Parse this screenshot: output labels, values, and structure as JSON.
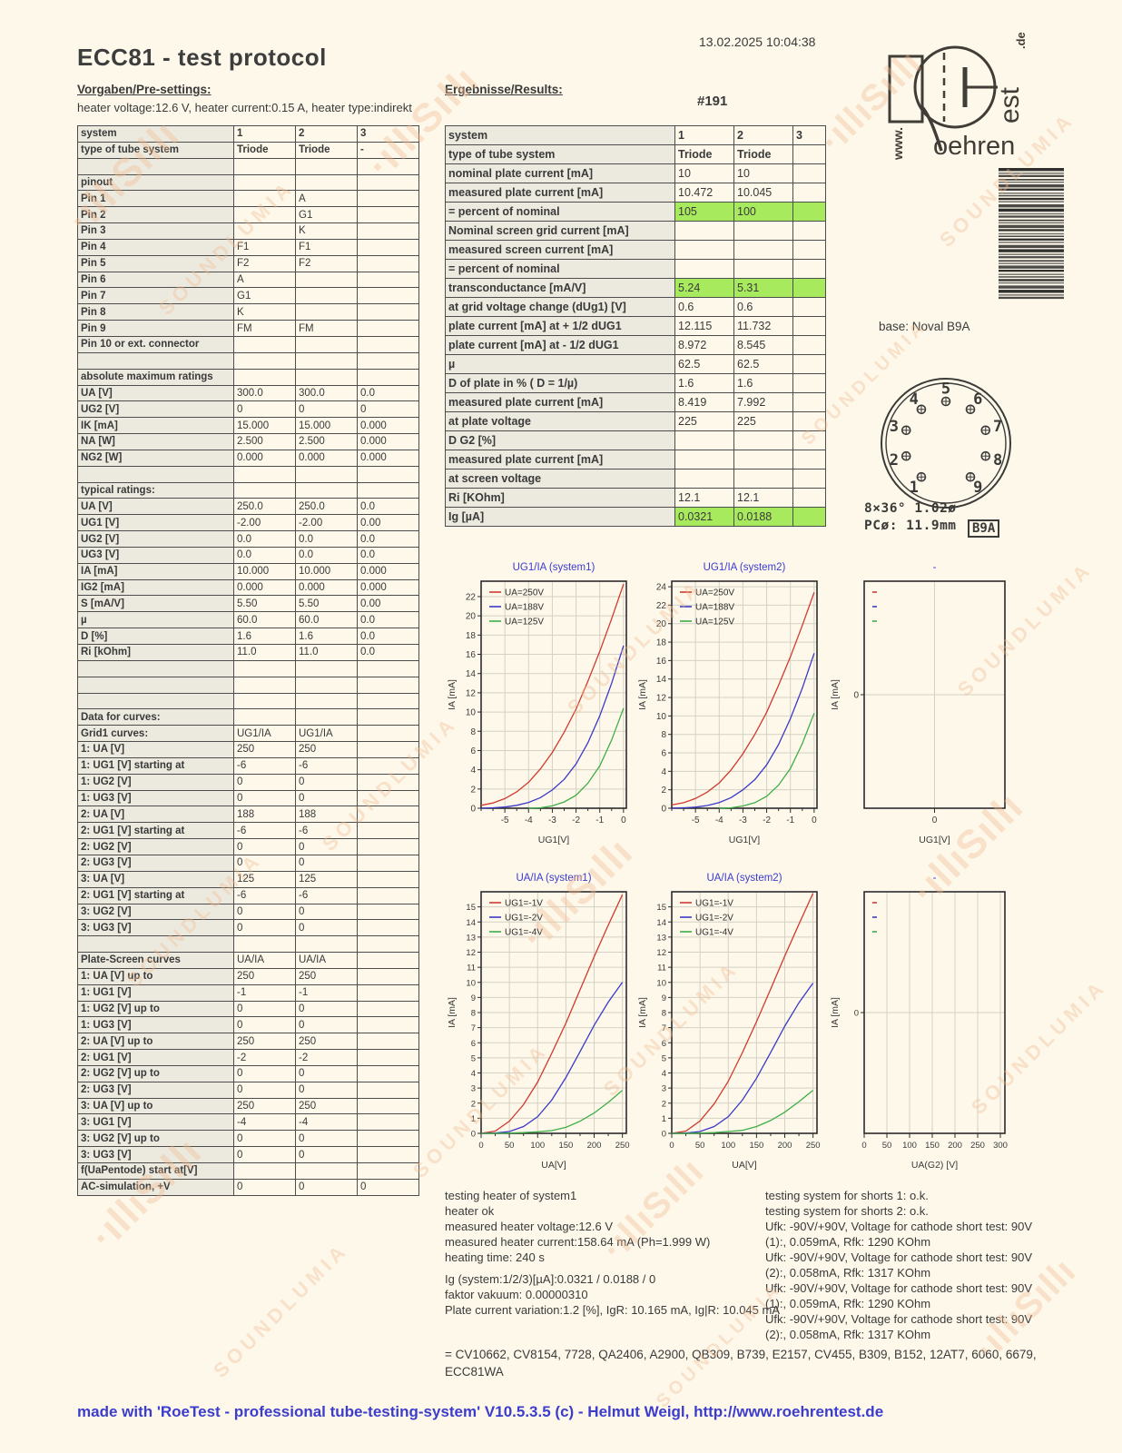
{
  "meta": {
    "timestamp": "13.02.2025  10:04:38",
    "title": "ECC81  -  test protocol",
    "serial": "#191"
  },
  "presettings": {
    "heading": "Vorgaben/Pre-settings:",
    "line": "heater voltage:12.6 V, heater current:0.15 A, heater type:indirekt"
  },
  "results": {
    "heading": "Ergebnisse/Results:"
  },
  "left_table": {
    "rows": [
      {
        "label": "system",
        "v1": "1",
        "v2": "2",
        "v3": "3",
        "bold": true
      },
      {
        "label": "type of tube system",
        "v1": "Triode",
        "v2": "Triode",
        "v3": "-",
        "bold": true
      },
      {},
      {
        "label": "pinout"
      },
      {
        "label": "Pin 1",
        "v2": "A"
      },
      {
        "label": "Pin 2",
        "v2": "G1"
      },
      {
        "label": "Pin 3",
        "v2": "K"
      },
      {
        "label": "Pin 4",
        "v1": "F1",
        "v2": "F1"
      },
      {
        "label": "Pin 5",
        "v1": "F2",
        "v2": "F2"
      },
      {
        "label": "Pin 6",
        "v1": "A"
      },
      {
        "label": "Pin 7",
        "v1": "G1"
      },
      {
        "label": "Pin 8",
        "v1": "K"
      },
      {
        "label": "Pin 9",
        "v1": "FM",
        "v2": "FM"
      },
      {
        "label": "Pin 10 or ext. connector"
      },
      {},
      {
        "label": "absolute maximum ratings"
      },
      {
        "label": "UA [V]",
        "v1": "300.0",
        "v2": "300.0",
        "v3": "0.0"
      },
      {
        "label": "UG2 [V]",
        "v1": "0",
        "v2": "0",
        "v3": "0"
      },
      {
        "label": "IK [mA]",
        "v1": "15.000",
        "v2": "15.000",
        "v3": "0.000"
      },
      {
        "label": "NA [W]",
        "v1": "2.500",
        "v2": "2.500",
        "v3": "0.000"
      },
      {
        "label": "NG2 [W]",
        "v1": "0.000",
        "v2": "0.000",
        "v3": "0.000"
      },
      {},
      {
        "label": "typical ratings:"
      },
      {
        "label": "UA [V]",
        "v1": "250.0",
        "v2": "250.0",
        "v3": "0.0"
      },
      {
        "label": "UG1 [V]",
        "v1": "-2.00",
        "v2": "-2.00",
        "v3": "0.00"
      },
      {
        "label": "UG2 [V]",
        "v1": "0.0",
        "v2": "0.0",
        "v3": "0.0"
      },
      {
        "label": "UG3 [V]",
        "v1": "0.0",
        "v2": "0.0",
        "v3": "0.0"
      },
      {
        "label": "IA [mA]",
        "v1": "10.000",
        "v2": "10.000",
        "v3": "0.000"
      },
      {
        "label": "IG2 [mA]",
        "v1": "0.000",
        "v2": "0.000",
        "v3": "0.000"
      },
      {
        "label": "S [mA/V]",
        "v1": "5.50",
        "v2": "5.50",
        "v3": "0.00"
      },
      {
        "label": "µ",
        "v1": "60.0",
        "v2": "60.0",
        "v3": "0.0"
      },
      {
        "label": "D [%]",
        "v1": "1.6",
        "v2": "1.6",
        "v3": "0.0"
      },
      {
        "label": "Ri [kOhm]",
        "v1": "11.0",
        "v2": "11.0",
        "v3": "0.0"
      },
      {},
      {},
      {},
      {
        "label": "Data for curves:"
      },
      {
        "label": "Grid1 curves:",
        "v1": "UG1/IA",
        "v2": "UG1/IA"
      },
      {
        "label": "1: UA [V]",
        "v1": "250",
        "v2": "250"
      },
      {
        "label": "1: UG1 [V] starting at",
        "v1": "-6",
        "v2": "-6"
      },
      {
        "label": "1: UG2 [V]",
        "v1": "0",
        "v2": "0"
      },
      {
        "label": "1: UG3 [V]",
        "v1": "0",
        "v2": "0"
      },
      {
        "label": "2: UA [V]",
        "v1": "188",
        "v2": "188"
      },
      {
        "label": "2: UG1 [V] starting at",
        "v1": "-6",
        "v2": "-6"
      },
      {
        "label": "2: UG2 [V]",
        "v1": "0",
        "v2": "0"
      },
      {
        "label": "2: UG3 [V]",
        "v1": "0",
        "v2": "0"
      },
      {
        "label": "3: UA [V]",
        "v1": "125",
        "v2": "125"
      },
      {
        "label": "2: UG1 [V] starting at",
        "v1": "-6",
        "v2": "-6"
      },
      {
        "label": "3: UG2 [V]",
        "v1": "0",
        "v2": "0"
      },
      {
        "label": "3: UG3 [V]",
        "v1": "0",
        "v2": "0"
      },
      {},
      {
        "label": "Plate-Screen curves",
        "v1": "UA/IA",
        "v2": "UA/IA"
      },
      {
        "label": "1: UA [V] up to",
        "v1": "250",
        "v2": "250"
      },
      {
        "label": "1: UG1 [V]",
        "v1": "-1",
        "v2": "-1"
      },
      {
        "label": "1: UG2 [V] up to",
        "v1": "0",
        "v2": "0"
      },
      {
        "label": "1: UG3 [V]",
        "v1": "0",
        "v2": "0"
      },
      {
        "label": "2: UA [V] up to",
        "v1": "250",
        "v2": "250"
      },
      {
        "label": "2: UG1 [V]",
        "v1": "-2",
        "v2": "-2"
      },
      {
        "label": "2: UG2 [V] up to",
        "v1": "0",
        "v2": "0"
      },
      {
        "label": "2: UG3 [V]",
        "v1": "0",
        "v2": "0"
      },
      {
        "label": "3: UA [V] up to",
        "v1": "250",
        "v2": "250"
      },
      {
        "label": "3: UG1 [V]",
        "v1": "-4",
        "v2": "-4"
      },
      {
        "label": "3: UG2 [V] up to",
        "v1": "0",
        "v2": "0"
      },
      {
        "label": "3: UG3 [V]",
        "v1": "0",
        "v2": "0"
      },
      {
        "label": "f(UaPentode) start at[V]"
      },
      {
        "label": "AC-simulation, +V",
        "v1": "0",
        "v2": "0",
        "v3": "0"
      }
    ]
  },
  "results_table": {
    "rows": [
      {
        "label": "system",
        "v1": "1",
        "v2": "2",
        "v3": "3",
        "bold": true
      },
      {
        "label": "type of tube system",
        "v1": "Triode",
        "v2": "Triode",
        "bold": true
      },
      {
        "label": "nominal plate current [mA]",
        "v1": "10",
        "v2": "10"
      },
      {
        "label": "measured plate current [mA]",
        "v1": "10.472",
        "v2": "10.045"
      },
      {
        "label": "= percent of nominal",
        "v1": "105",
        "v2": "100",
        "hl": true
      },
      {
        "label": "Nominal screen grid current [mA]"
      },
      {
        "label": "measured screen current [mA]"
      },
      {
        "label": "= percent of nominal"
      },
      {
        "label": "transconductance [mA/V]",
        "v1": "5.24",
        "v2": "5.31",
        "hl": true
      },
      {
        "label": "at grid voltage change (dUg1) [V]",
        "v1": "0.6",
        "v2": "0.6"
      },
      {
        "label": "plate current [mA] at + 1/2 dUG1",
        "v1": "12.115",
        "v2": "11.732"
      },
      {
        "label": "plate current [mA] at - 1/2 dUG1",
        "v1": "8.972",
        "v2": "8.545"
      },
      {
        "label": "µ",
        "v1": "62.5",
        "v2": "62.5"
      },
      {
        "label": "D of plate in % ( D = 1/µ)",
        "v1": "1.6",
        "v2": "1.6"
      },
      {
        "label": "measured plate current [mA]",
        "v1": "8.419",
        "v2": "7.992"
      },
      {
        "label": "at plate voltage",
        "v1": "225",
        "v2": "225"
      },
      {
        "label": "D G2 [%]"
      },
      {
        "label": "measured plate current [mA]"
      },
      {
        "label": "at screen voltage"
      },
      {
        "label": "Ri [KOhm]",
        "v1": "12.1",
        "v2": "12.1"
      },
      {
        "label": "Ig [µA]",
        "v1": "0.0321",
        "v2": "0.0188",
        "hl": true
      }
    ]
  },
  "base": {
    "label": "base: Noval B9A",
    "pins": [
      "1",
      "2",
      "3",
      "4",
      "5",
      "6",
      "7",
      "8",
      "9"
    ],
    "dim1": "8×36° 1.02ø",
    "dim2": "PCø: 11.9mm",
    "code": "B9A"
  },
  "logo": {
    "www": "www.",
    "oehren": "oehren",
    "est": "est",
    "de": ".de"
  },
  "chart_data": [
    {
      "type": "line",
      "title": "UG1/IA (system1)",
      "xlabel": "UG1[V]",
      "ylabel": "IA [mA]",
      "xlim": [
        -6,
        0.12
      ],
      "ylim": [
        0,
        23.6
      ],
      "xticks": [
        -5,
        -4,
        -3,
        -2,
        -1,
        0
      ],
      "xminor": 0.5,
      "yticks": [
        0,
        2,
        4,
        6,
        8,
        10,
        12,
        14,
        16,
        18,
        20,
        22
      ],
      "series": [
        {
          "name": "UA=250V",
          "color": "#d03a2e",
          "x": [
            -6,
            -5.5,
            -5,
            -4.5,
            -4,
            -3.5,
            -3,
            -2.5,
            -2,
            -1.5,
            -1,
            -0.5,
            0
          ],
          "y": [
            0.3,
            0.55,
            1.0,
            1.7,
            2.7,
            4.1,
            5.8,
            7.9,
            10.3,
            13.2,
            16.3,
            19.7,
            23.3
          ]
        },
        {
          "name": "UA=188V",
          "color": "#3a3ac8",
          "x": [
            -6,
            -5.5,
            -5,
            -4.5,
            -4,
            -3.5,
            -3,
            -2.5,
            -2,
            -1.5,
            -1,
            -0.5,
            0
          ],
          "y": [
            0,
            0.05,
            0.12,
            0.3,
            0.6,
            1.1,
            1.9,
            3.0,
            4.6,
            6.8,
            9.6,
            13.0,
            16.9
          ]
        },
        {
          "name": "UA=125V",
          "color": "#3fae47",
          "x": [
            -4,
            -3.5,
            -3,
            -2.5,
            -2,
            -1.5,
            -1,
            -0.5,
            0
          ],
          "y": [
            0,
            0.05,
            0.25,
            0.65,
            1.35,
            2.6,
            4.4,
            7.1,
            10.4
          ]
        }
      ]
    },
    {
      "type": "line",
      "title": "UG1/IA (system2)",
      "xlabel": "UG1[V]",
      "ylabel": "IA [mA]",
      "xlim": [
        -6,
        0.12
      ],
      "ylim": [
        0,
        24.6
      ],
      "xticks": [
        -5,
        -4,
        -3,
        -2,
        -1,
        0
      ],
      "xminor": 0.5,
      "yticks": [
        0,
        2,
        4,
        6,
        8,
        10,
        12,
        14,
        16,
        18,
        20,
        22,
        24
      ],
      "series": [
        {
          "name": "UA=250V",
          "color": "#d03a2e",
          "x": [
            -6,
            -5.5,
            -5,
            -4.5,
            -4,
            -3.5,
            -3,
            -2.5,
            -2,
            -1.5,
            -1,
            -0.5,
            0
          ],
          "y": [
            0.35,
            0.6,
            1.05,
            1.75,
            2.75,
            4.15,
            5.9,
            8.0,
            10.4,
            13.3,
            16.4,
            19.8,
            23.4
          ]
        },
        {
          "name": "UA=188V",
          "color": "#3a3ac8",
          "x": [
            -6,
            -5.5,
            -5,
            -4.5,
            -4,
            -3.5,
            -3,
            -2.5,
            -2,
            -1.5,
            -1,
            -0.5,
            0
          ],
          "y": [
            0,
            0.05,
            0.12,
            0.3,
            0.62,
            1.15,
            2.0,
            3.1,
            4.7,
            6.9,
            9.7,
            13.0,
            16.8
          ]
        },
        {
          "name": "UA=125V",
          "color": "#3fae47",
          "x": [
            -4,
            -3.5,
            -3,
            -2.5,
            -2,
            -1.5,
            -1,
            -0.5,
            0
          ],
          "y": [
            0,
            0.05,
            0.25,
            0.6,
            1.3,
            2.5,
            4.3,
            7.0,
            10.3
          ]
        }
      ]
    },
    {
      "type": "line",
      "title": "-",
      "xlabel": "UG1[V]",
      "ylabel": "IA [mA]",
      "xlim": [
        -1,
        1
      ],
      "ylim": [
        -1,
        1
      ],
      "xticks": [
        0
      ],
      "yticks": [
        0
      ],
      "series": [
        {
          "name": "",
          "color": "#d03a2e",
          "x": [],
          "y": []
        },
        {
          "name": "",
          "color": "#3a3ac8",
          "x": [],
          "y": []
        },
        {
          "name": "",
          "color": "#3fae47",
          "x": [],
          "y": []
        }
      ]
    },
    {
      "type": "line",
      "title": "UA/IA (system1)",
      "xlabel": "UA[V]",
      "ylabel": "IA [mA]",
      "xlim": [
        0,
        257
      ],
      "ylim": [
        0,
        16
      ],
      "xticks": [
        0,
        50,
        100,
        150,
        200,
        250
      ],
      "xminor": 25,
      "yticks": [
        0,
        1,
        2,
        3,
        4,
        5,
        6,
        7,
        8,
        9,
        10,
        11,
        12,
        13,
        14,
        15
      ],
      "series": [
        {
          "name": "UG1=-1V",
          "color": "#d03a2e",
          "x": [
            0,
            25,
            50,
            75,
            100,
            125,
            150,
            175,
            200,
            225,
            250
          ],
          "y": [
            0,
            0.15,
            0.8,
            1.9,
            3.4,
            5.3,
            7.3,
            9.5,
            11.7,
            13.8,
            15.8
          ]
        },
        {
          "name": "UG1=-2V",
          "color": "#3a3ac8",
          "x": [
            0,
            25,
            50,
            75,
            100,
            125,
            150,
            175,
            200,
            225,
            250
          ],
          "y": [
            0,
            0.02,
            0.12,
            0.45,
            1.1,
            2.2,
            3.7,
            5.4,
            7.15,
            8.7,
            10.0
          ]
        },
        {
          "name": "UG1=-4V",
          "color": "#3fae47",
          "x": [
            0,
            25,
            50,
            75,
            100,
            125,
            150,
            175,
            200,
            225,
            250
          ],
          "y": [
            0,
            0,
            0.02,
            0.05,
            0.1,
            0.18,
            0.4,
            0.8,
            1.35,
            2.05,
            2.85
          ]
        }
      ]
    },
    {
      "type": "line",
      "title": "UA/IA (system2)",
      "xlabel": "UA[V]",
      "ylabel": "IA [mA]",
      "xlim": [
        0,
        257
      ],
      "ylim": [
        0,
        16
      ],
      "xticks": [
        0,
        50,
        100,
        150,
        200,
        250
      ],
      "xminor": 25,
      "yticks": [
        0,
        1,
        2,
        3,
        4,
        5,
        6,
        7,
        8,
        9,
        10,
        11,
        12,
        13,
        14,
        15
      ],
      "series": [
        {
          "name": "UG1=-1V",
          "color": "#d03a2e",
          "x": [
            0,
            25,
            50,
            75,
            100,
            125,
            150,
            175,
            200,
            225,
            250
          ],
          "y": [
            0,
            0.15,
            0.82,
            1.95,
            3.45,
            5.35,
            7.4,
            9.55,
            11.75,
            13.85,
            15.9
          ]
        },
        {
          "name": "UG1=-2V",
          "color": "#3a3ac8",
          "x": [
            0,
            25,
            50,
            75,
            100,
            125,
            150,
            175,
            200,
            225,
            250
          ],
          "y": [
            0,
            0.02,
            0.12,
            0.45,
            1.1,
            2.2,
            3.65,
            5.35,
            7.1,
            8.65,
            9.95
          ]
        },
        {
          "name": "UG1=-4V",
          "color": "#3fae47",
          "x": [
            0,
            25,
            50,
            75,
            100,
            125,
            150,
            175,
            200,
            225,
            250
          ],
          "y": [
            0,
            0,
            0.02,
            0.05,
            0.12,
            0.2,
            0.45,
            0.85,
            1.4,
            2.1,
            2.85
          ]
        }
      ]
    },
    {
      "type": "line",
      "title": "-",
      "xlabel": "UA(G2) [V]",
      "ylabel": "IA [mA]",
      "xlim": [
        0,
        310
      ],
      "ylim": [
        -1,
        1
      ],
      "xticks": [
        0,
        50,
        100,
        150,
        200,
        250,
        300
      ],
      "yticks": [
        0
      ],
      "series": [
        {
          "name": "",
          "color": "#d03a2e",
          "x": [],
          "y": []
        },
        {
          "name": "",
          "color": "#3a3ac8",
          "x": [],
          "y": []
        },
        {
          "name": "",
          "color": "#3fae47",
          "x": [],
          "y": []
        }
      ]
    }
  ],
  "notes_left": [
    "testing heater of system1",
    "heater ok",
    "measured heater voltage:12.6 V",
    "measured heater current:158.64 mA (Ph=1.999 W)",
    "heating time: 240 s"
  ],
  "notes_vacuum": [
    "Ig (system:1/2/3)[µA]:0.0321 / 0.0188 / 0",
    "faktor vakuum: 0.00000310",
    "Plate current variation:1.2 [%], IgR: 10.165 mA, Ig|R: 10.045 mA"
  ],
  "notes_right": [
    "testing system for shorts 1: o.k.",
    "testing system for shorts 2: o.k.",
    "Ufk: -90V/+90V, Voltage for cathode short test: 90V",
    "(1):, 0.059mA, Rfk: 1290 KOhm",
    "Ufk: -90V/+90V, Voltage for cathode short test: 90V",
    "(2):, 0.058mA, Rfk: 1317 KOhm",
    "Ufk: -90V/+90V, Voltage for cathode short test: 90V",
    "(1):, 0.059mA, Rfk: 1290 KOhm",
    "Ufk: -90V/+90V, Voltage for cathode short test: 90V",
    "(2):, 0.058mA, Rfk: 1317 KOhm"
  ],
  "equivalents": "= CV10662,   CV8154,   7728,   QA2406,   A2900, QB309, B739, E2157, CV455,  B309,  B152,  12AT7, 6060, 6679, ECC81WA",
  "footer": "made with 'RoeTest - professional tube-testing-system' V10.5.3.5 (c) - Helmut Weigl, http://www.roehrentest.de",
  "watermark": {
    "text": "SOUNDLUMIA",
    "squiggle": "·ıllıSıllı"
  },
  "colors": {
    "highlight": "#a8ea5e",
    "accent_blue": "#3c3ccd",
    "curve_red": "#d03a2e",
    "curve_blue": "#3a3ac8",
    "curve_green": "#3fae47"
  }
}
